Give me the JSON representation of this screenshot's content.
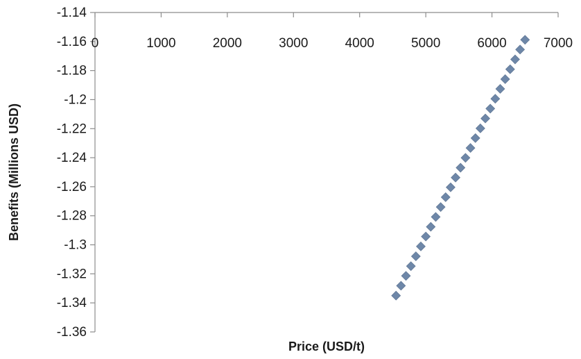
{
  "chart_data": {
    "type": "scatter",
    "title": "",
    "xlabel": "Price (USD/t)",
    "ylabel": "Benefits (Millions  USD)",
    "xlim": [
      0,
      7000
    ],
    "ylim": [
      -1.36,
      -1.14
    ],
    "x_ticks": [
      "0",
      "1000",
      "2000",
      "3000",
      "4000",
      "5000",
      "6000",
      "7000"
    ],
    "y_ticks": [
      "-1.14",
      "-1.16",
      "-1.18",
      "-1.2",
      "-1.22",
      "-1.24",
      "-1.26",
      "-1.28",
      "-1.3",
      "-1.32",
      "-1.34",
      "-1.36"
    ],
    "x_axis_position": "top, crossing y at -1.14",
    "grid": false,
    "legend": "none",
    "marker": "diamond",
    "color": "#6E87A8",
    "series": [
      {
        "x": [
          4550,
          4625,
          4700,
          4775,
          4850,
          4925,
          5000,
          5075,
          5150,
          5225,
          5300,
          5375,
          5450,
          5525,
          5600,
          5675,
          5750,
          5825,
          5900,
          5975,
          6050,
          6125,
          6200,
          6275,
          6350,
          6425,
          6500
        ],
        "y": [
          -1.335,
          -1.3282,
          -1.3214,
          -1.3147,
          -1.3079,
          -1.3011,
          -1.2943,
          -1.2876,
          -1.2808,
          -1.274,
          -1.2672,
          -1.2604,
          -1.2537,
          -1.2469,
          -1.2401,
          -1.2333,
          -1.2265,
          -1.2198,
          -1.213,
          -1.2062,
          -1.1994,
          -1.1926,
          -1.1859,
          -1.1791,
          -1.1723,
          -1.1655,
          -1.1588
        ]
      }
    ]
  }
}
